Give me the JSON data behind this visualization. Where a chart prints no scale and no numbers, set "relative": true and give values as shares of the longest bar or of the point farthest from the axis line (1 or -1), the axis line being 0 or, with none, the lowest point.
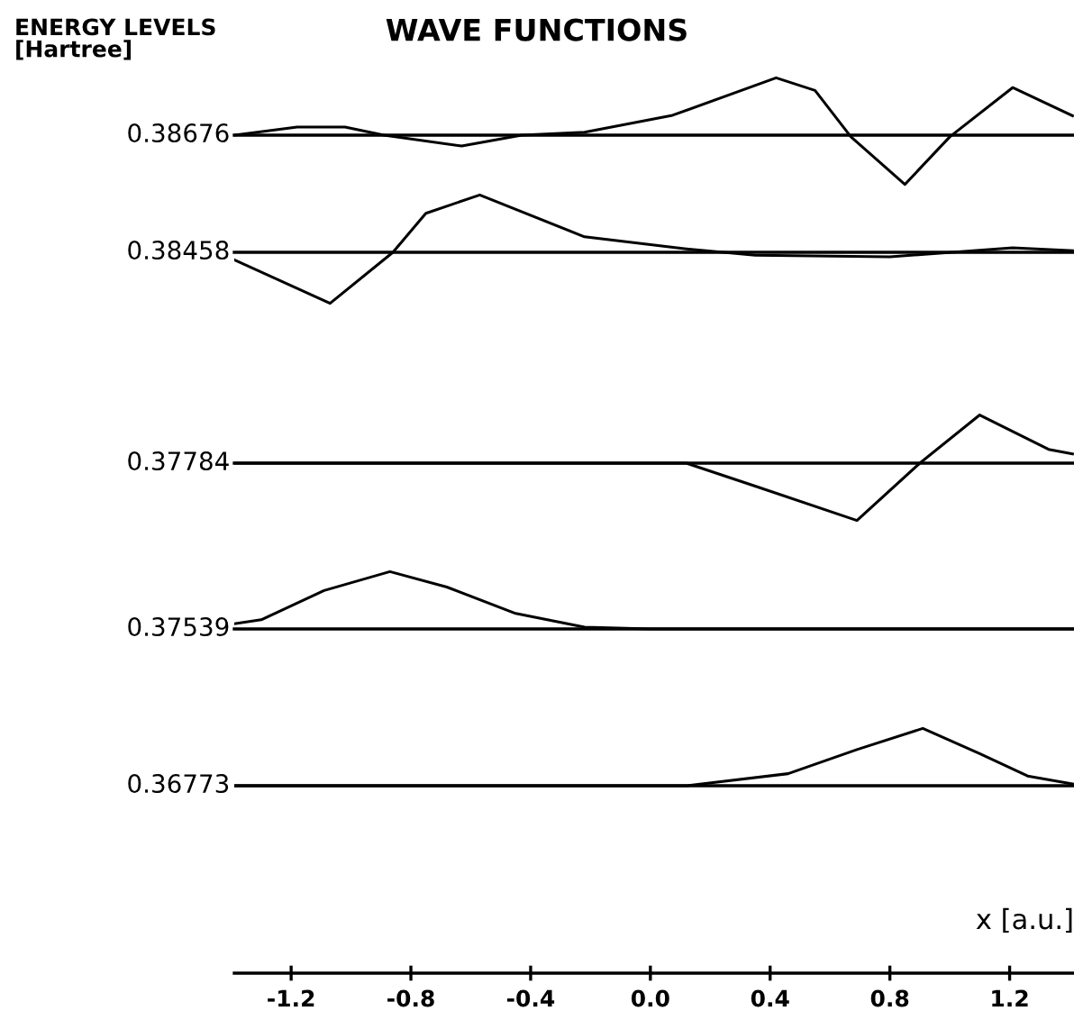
{
  "chart_data": [
    {
      "type": "line",
      "title": "WAVE FUNCTIONS",
      "annotations": [
        "ENERGY LEVELS\n[Hartree]"
      ],
      "ylabel": "0.38676",
      "relative": true,
      "tick_labels": false,
      "xlim": [
        -1.39,
        1.415
      ],
      "series": [
        {
          "color": "#000000",
          "x": [
            -1.39,
            -1.18,
            -1.02,
            -0.89,
            -0.63,
            -0.43,
            -0.22,
            0.07,
            0.42,
            0.55,
            0.67,
            0.85,
            1.0,
            1.21,
            1.41
          ],
          "values": [
            0,
            0.14,
            0.14,
            0,
            -0.19,
            0,
            0.05,
            0.34,
            1,
            0.78,
            -0.03,
            -0.86,
            -0.03,
            0.83,
            0.34
          ]
        }
      ]
    },
    {
      "type": "line",
      "ylabel": "0.38458",
      "relative": true,
      "tick_labels": false,
      "xlim": [
        -1.39,
        1.415
      ],
      "series": [
        {
          "color": "#000000",
          "x": [
            -1.39,
            -1.07,
            -0.86,
            -0.75,
            -0.57,
            -0.22,
            0.12,
            0.35,
            0.8,
            1.21,
            1.41
          ],
          "values": [
            -0.13,
            -0.89,
            0,
            0.68,
            1,
            0.27,
            0.06,
            -0.05,
            -0.08,
            0.08,
            0.03
          ]
        }
      ]
    },
    {
      "type": "line",
      "ylabel": "0.37784",
      "relative": true,
      "tick_labels": false,
      "xlim": [
        -1.39,
        1.415
      ],
      "series": [
        {
          "color": "#000000",
          "x": [
            -1.39,
            -0.6,
            0.12,
            0.35,
            0.69,
            0.9,
            1.1,
            1.33,
            1.41
          ],
          "values": [
            0,
            0,
            0,
            -0.4,
            -1,
            0,
            0.84,
            0.24,
            0.16
          ]
        }
      ]
    },
    {
      "type": "line",
      "ylabel": "0.37539",
      "relative": true,
      "tick_labels": false,
      "xlim": [
        -1.39,
        1.415
      ],
      "series": [
        {
          "color": "#000000",
          "x": [
            -1.39,
            -1.3,
            -1.09,
            -0.87,
            -0.68,
            -0.45,
            -0.22,
            0.0,
            1.41
          ],
          "values": [
            0.09,
            0.16,
            0.67,
            1,
            0.73,
            0.27,
            0.03,
            0,
            0
          ]
        }
      ]
    },
    {
      "type": "line",
      "ylabel": "0.36773",
      "xlabel": "x [a.u.]",
      "relative": true,
      "tick_labels": "x",
      "xlim": [
        -1.39,
        1.415
      ],
      "xticks": [
        -1.2,
        -0.8,
        -0.4,
        {
          "value": 0.0,
          "label": "0.0"
        },
        0.4,
        0.8,
        1.2
      ],
      "series": [
        {
          "color": "#000000",
          "x": [
            -1.39,
            0.12,
            0.46,
            0.69,
            0.91,
            1.1,
            1.26,
            1.41
          ],
          "values": [
            0,
            0,
            0.21,
            0.63,
            1,
            0.56,
            0.17,
            0.03
          ]
        }
      ]
    }
  ]
}
